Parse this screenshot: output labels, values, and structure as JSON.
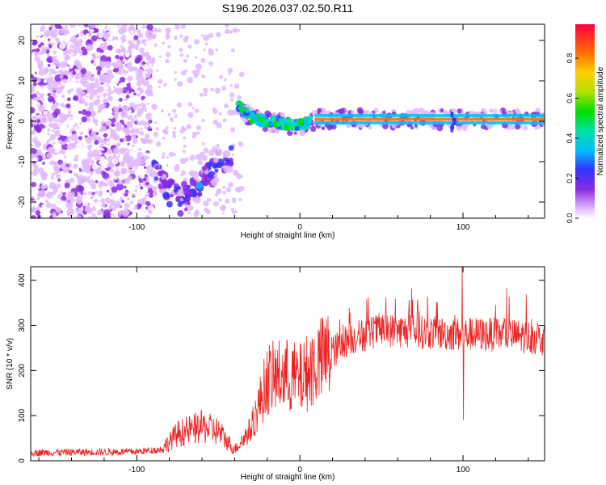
{
  "title": "S196.2026.037.02.50.R11",
  "colorbar": {
    "label": "Normalized spectral amplitude",
    "ticks": [
      "0.0",
      "0.2",
      "0.4",
      "0.6",
      "0.8"
    ],
    "tick_values": [
      0.0,
      0.2,
      0.4,
      0.6,
      0.8
    ],
    "range": [
      0,
      0.97
    ]
  },
  "chart_data": [
    {
      "type": "heatmap",
      "name": "spectrogram",
      "xlabel": "Height of straight line (km)",
      "ylabel": "Frequency (Hz)",
      "xlim": [
        -165,
        150
      ],
      "ylim": [
        -24,
        24
      ],
      "xticks": [
        -100,
        0,
        100
      ],
      "xtick_labels": [
        "-100",
        "0",
        "100"
      ],
      "yticks": [
        -20,
        -10,
        0,
        10,
        20
      ],
      "ytick_labels": [
        "-20",
        "-10",
        "0",
        "10",
        "20"
      ],
      "features": [
        {
          "region": "noise",
          "x_range": [
            -165,
            -90
          ],
          "freq_range": [
            -24,
            24
          ],
          "amplitude": 0.1
        },
        {
          "region": "v-shape",
          "x": [
            -90,
            -82,
            -75,
            -65,
            -55,
            -47,
            -42
          ],
          "freq": [
            -13,
            -16,
            -20,
            -17,
            -13,
            -10,
            -10
          ],
          "amplitude": 0.25
        },
        {
          "region": "line",
          "x": [
            -38,
            -30,
            -20,
            -10,
            0,
            10,
            100,
            150
          ],
          "freq": [
            4,
            1,
            0,
            -0.5,
            -1,
            0.5,
            0.5,
            0.5
          ],
          "amplitude": 0.95
        }
      ]
    },
    {
      "type": "line",
      "name": "snr",
      "xlabel": "Height of straight line (km)",
      "ylabel": "SNR (10 * v/v)",
      "xlim": [
        -165,
        150
      ],
      "ylim": [
        0,
        430
      ],
      "xticks": [
        -100,
        0,
        100
      ],
      "xtick_labels": [
        "-100",
        "0",
        "100"
      ],
      "yticks": [
        0,
        100,
        200,
        300,
        400
      ],
      "ytick_labels": [
        "0",
        "100",
        "200",
        "300",
        "400"
      ],
      "color": "#ee2222",
      "trend_x": [
        -165,
        -100,
        -85,
        -75,
        -60,
        -50,
        -40,
        -30,
        -20,
        -10,
        0,
        10,
        20,
        30,
        50,
        75,
        99,
        101,
        125,
        150
      ],
      "trend_y": [
        18,
        20,
        25,
        60,
        75,
        65,
        25,
        70,
        180,
        190,
        180,
        215,
        240,
        270,
        290,
        285,
        280,
        280,
        280,
        270
      ],
      "spikes": [
        {
          "x": 99.5,
          "y": 430
        },
        {
          "x": 100,
          "y": 90
        }
      ]
    }
  ]
}
